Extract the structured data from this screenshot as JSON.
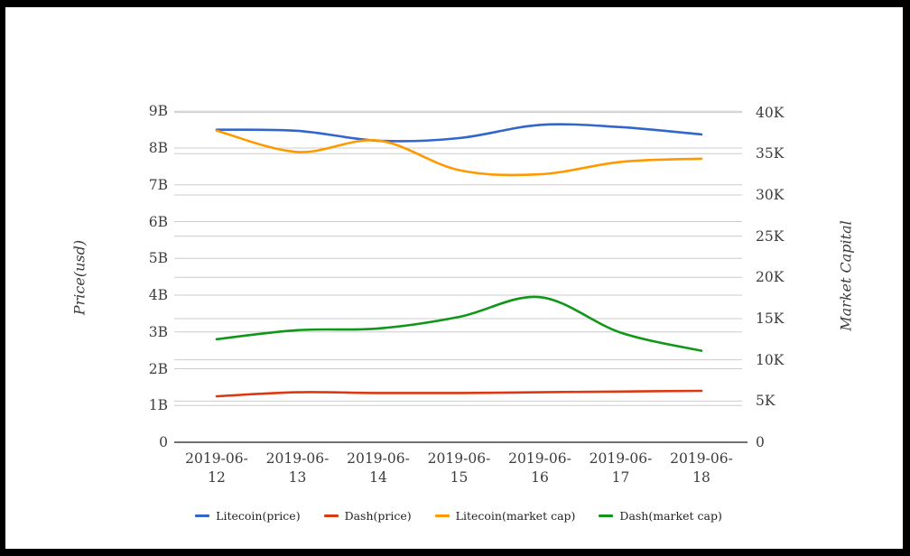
{
  "chart_data": {
    "type": "line",
    "x": [
      "2019-06-12",
      "2019-06-13",
      "2019-06-14",
      "2019-06-15",
      "2019-06-16",
      "2019-06-17",
      "2019-06-18"
    ],
    "series": [
      {
        "name": "Litecoin(price)",
        "color": "#3366cc",
        "axis": "left",
        "values": [
          8.5,
          8.47,
          8.2,
          8.27,
          8.63,
          8.57,
          8.37
        ]
      },
      {
        "name": "Dash(price)",
        "color": "#dc3912",
        "axis": "left",
        "values": [
          1.25,
          1.36,
          1.34,
          1.34,
          1.36,
          1.38,
          1.4
        ]
      },
      {
        "name": "Litecoin(market cap)",
        "color": "#ff9900",
        "axis": "right",
        "values": [
          37.8,
          35.2,
          36.6,
          33.0,
          32.5,
          34.0,
          34.4
        ]
      },
      {
        "name": "Dash(market cap)",
        "color": "#109618",
        "axis": "right",
        "values": [
          12.5,
          13.6,
          13.8,
          15.2,
          17.6,
          13.3,
          11.1
        ]
      }
    ],
    "left_axis": {
      "title": "Price(usd)",
      "ticks": [
        "0",
        "1B",
        "2B",
        "3B",
        "4B",
        "5B",
        "6B",
        "7B",
        "8B",
        "9B"
      ],
      "range": [
        0,
        9
      ]
    },
    "right_axis": {
      "title": "Market Capital",
      "ticks": [
        "0",
        "5K",
        "10K",
        "15K",
        "20K",
        "25K",
        "30K",
        "35K",
        "40K"
      ],
      "range": [
        0,
        40
      ]
    },
    "grid": true,
    "legend_position": "bottom",
    "curve": "smooth"
  },
  "colors": {
    "background": "#ffffff",
    "frame": "#000000",
    "gridline": "#cccccc",
    "axis_line": "#424242",
    "tick_text": "#3d3d3d"
  }
}
